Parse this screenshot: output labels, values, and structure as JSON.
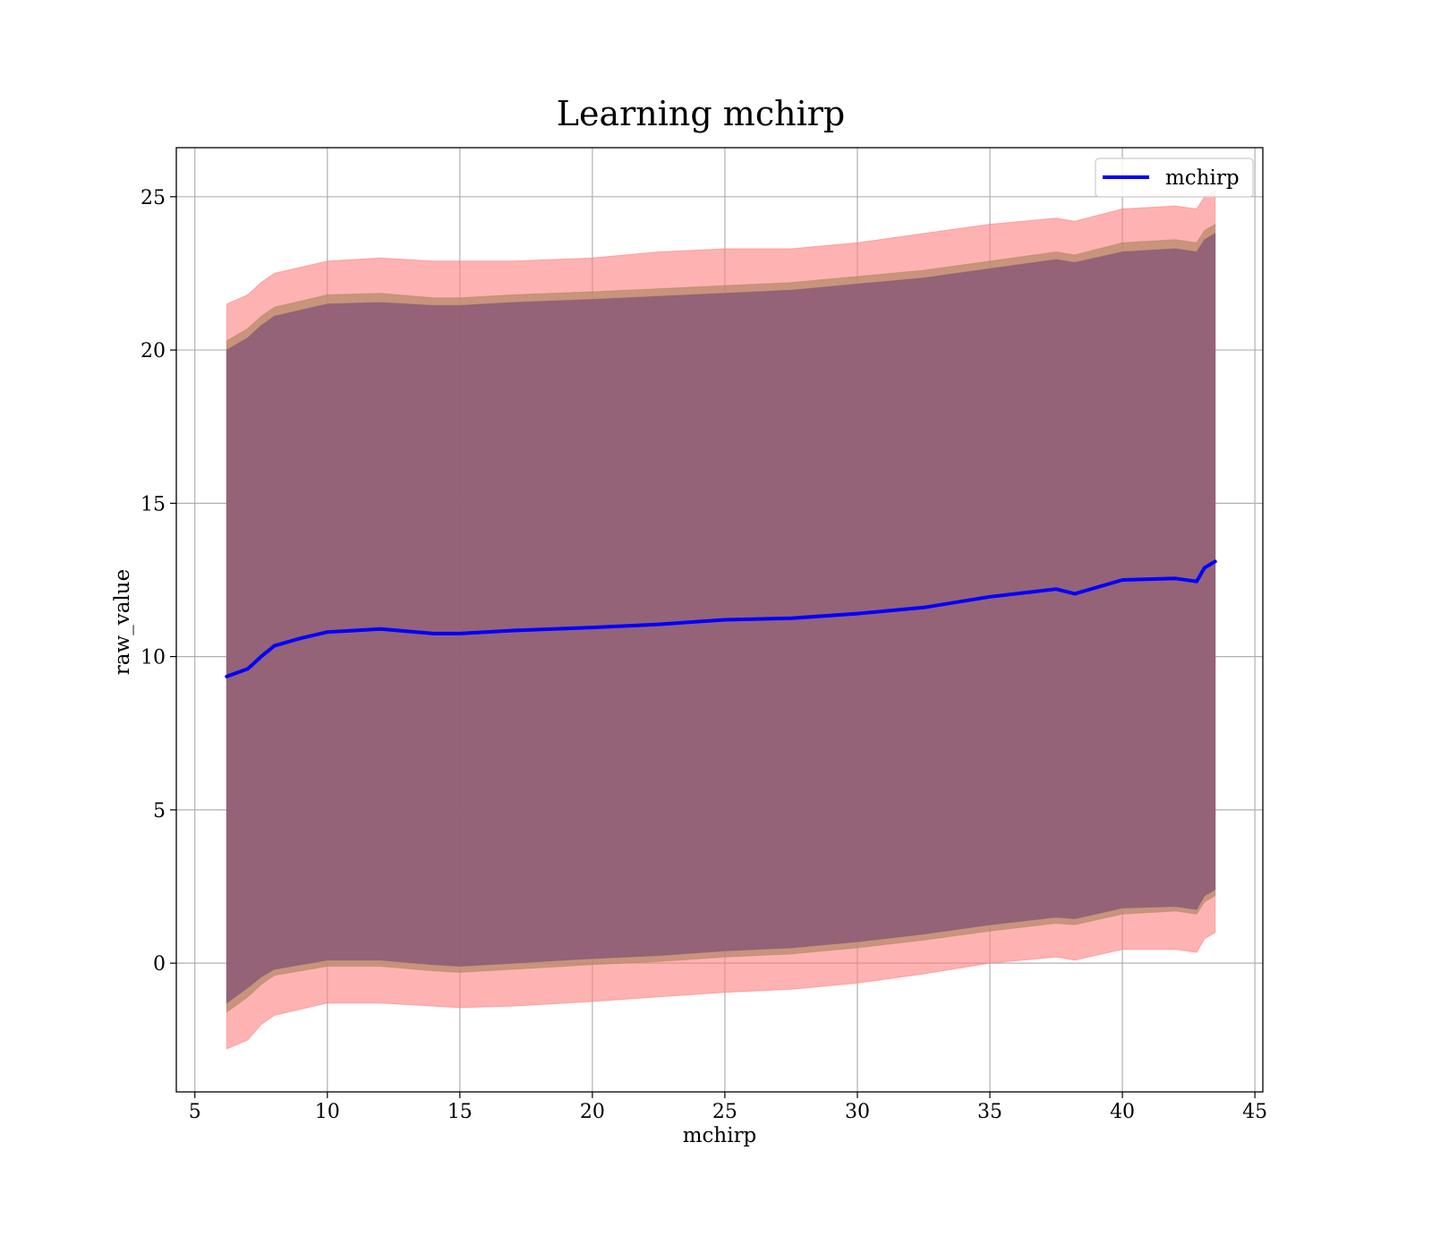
{
  "chart_data": {
    "type": "area",
    "title": "Learning mchirp",
    "xlabel": "mchirp",
    "ylabel": "raw_value",
    "xlim": [
      4.3,
      45.3
    ],
    "ylim": [
      -4.2,
      26.6
    ],
    "x_ticks": [
      5,
      10,
      15,
      20,
      25,
      30,
      35,
      40,
      45
    ],
    "x_tick_labels": [
      "5",
      "10",
      "15",
      "20",
      "25",
      "30",
      "35",
      "40",
      "45"
    ],
    "y_ticks": [
      0,
      5,
      10,
      15,
      20,
      25
    ],
    "y_tick_labels": [
      "0",
      "5",
      "10",
      "15",
      "20",
      "25"
    ],
    "grid": true,
    "legend": {
      "position": "top-right",
      "entries": [
        "mchirp"
      ]
    },
    "x": [
      6.2,
      7.0,
      7.5,
      8.0,
      9.0,
      10.0,
      12.0,
      14.0,
      15.0,
      17.0,
      20.0,
      22.5,
      25.0,
      27.5,
      30.0,
      32.5,
      35.0,
      37.5,
      38.2,
      40.0,
      42.0,
      42.8,
      43.1,
      43.5
    ],
    "series": [
      {
        "name": "mchirp",
        "role": "mean",
        "color": "#0000ff",
        "values": [
          9.35,
          9.6,
          10.0,
          10.35,
          10.6,
          10.8,
          10.9,
          10.75,
          10.75,
          10.85,
          10.95,
          11.05,
          11.2,
          11.25,
          11.4,
          11.6,
          11.95,
          12.2,
          12.05,
          12.5,
          12.55,
          12.45,
          12.9,
          13.1
        ]
      },
      {
        "role": "band-outer",
        "color": "#ff7f7f",
        "upper": [
          21.5,
          21.8,
          22.2,
          22.5,
          22.7,
          22.9,
          23.0,
          22.9,
          22.9,
          22.9,
          23.0,
          23.2,
          23.3,
          23.3,
          23.5,
          23.8,
          24.1,
          24.3,
          24.2,
          24.6,
          24.7,
          24.6,
          25.0,
          25.2
        ],
        "lower": [
          -2.8,
          -2.5,
          -2.0,
          -1.7,
          -1.5,
          -1.3,
          -1.3,
          -1.4,
          -1.45,
          -1.4,
          -1.25,
          -1.1,
          -0.95,
          -0.85,
          -0.65,
          -0.35,
          0.0,
          0.2,
          0.1,
          0.45,
          0.45,
          0.35,
          0.8,
          1.0
        ]
      },
      {
        "role": "band-middle",
        "color": "#b58a6a",
        "upper": [
          20.3,
          20.7,
          21.1,
          21.4,
          21.6,
          21.8,
          21.85,
          21.7,
          21.7,
          21.8,
          21.9,
          22.0,
          22.1,
          22.2,
          22.4,
          22.6,
          22.9,
          23.2,
          23.1,
          23.5,
          23.6,
          23.5,
          23.9,
          24.1
        ],
        "lower": [
          -1.6,
          -1.1,
          -0.7,
          -0.4,
          -0.25,
          -0.1,
          -0.1,
          -0.25,
          -0.3,
          -0.2,
          -0.05,
          0.05,
          0.2,
          0.3,
          0.5,
          0.75,
          1.05,
          1.3,
          1.25,
          1.6,
          1.7,
          1.6,
          2.0,
          2.2
        ]
      },
      {
        "role": "band-inner",
        "color": "#8b5a78",
        "upper": [
          20.0,
          20.4,
          20.8,
          21.1,
          21.3,
          21.5,
          21.55,
          21.45,
          21.45,
          21.55,
          21.65,
          21.75,
          21.85,
          21.95,
          22.15,
          22.35,
          22.65,
          22.95,
          22.85,
          23.2,
          23.3,
          23.2,
          23.6,
          23.8
        ],
        "lower": [
          -1.3,
          -0.8,
          -0.45,
          -0.2,
          -0.05,
          0.1,
          0.1,
          -0.05,
          -0.1,
          0.0,
          0.15,
          0.25,
          0.4,
          0.5,
          0.7,
          0.95,
          1.25,
          1.5,
          1.45,
          1.8,
          1.85,
          1.75,
          2.2,
          2.4
        ]
      }
    ]
  }
}
